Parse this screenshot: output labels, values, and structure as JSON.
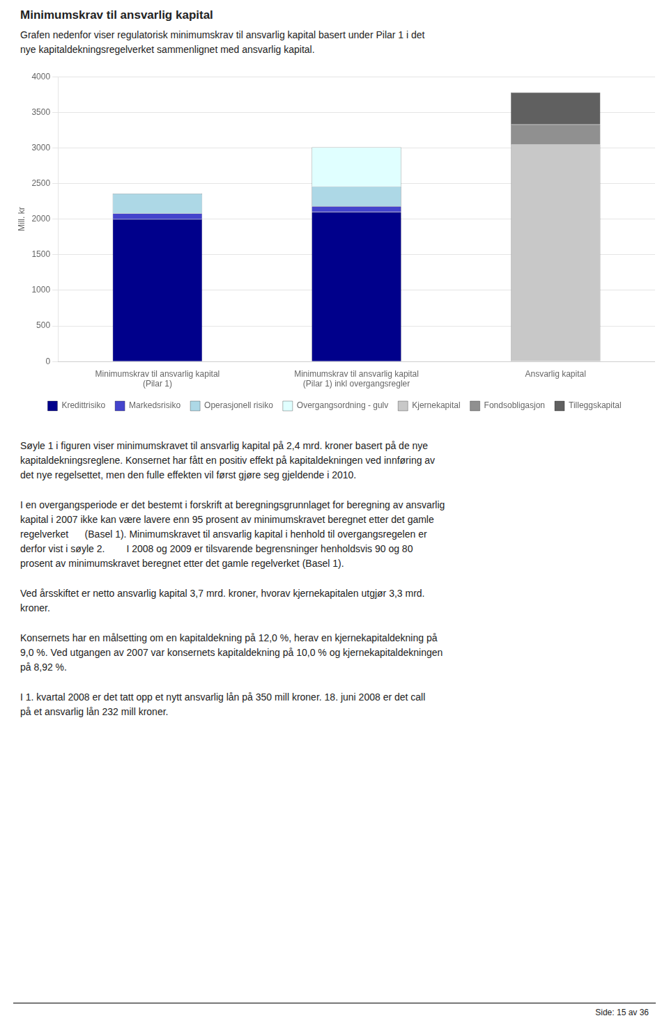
{
  "chart_data": {
    "type": "bar",
    "title": "Minimumskrav til ansvarlig kapital",
    "subtitle": "Grafen nedenfor viser regulatorisk minimumskrav til ansvarlig kapital basert under Pilar 1 i det\nnye kapitaldekningsregelverket sammenlignet med ansvarlig kapital.",
    "ylabel": "Mill. kr",
    "categories": [
      "Minimumskrav til ansvarlig kapital\n(Pilar 1)",
      "Minimumskrav til ansvarlig kapital\n(Pilar 1) inkl overgangsregler",
      "Ansvarlig kapital"
    ],
    "series": [
      {
        "name": "Kredittrisiko",
        "color": "#00008B",
        "values": [
          2000,
          2100,
          0
        ]
      },
      {
        "name": "Markedsrisiko",
        "color": "#4444CC",
        "values": [
          80,
          80,
          0
        ]
      },
      {
        "name": "Operasjonell risiko",
        "color": "#ADD8E6",
        "values": [
          280,
          280,
          0
        ]
      },
      {
        "name": "Overgangsordning - gulv",
        "color": "#E0FFFF",
        "values": [
          0,
          550,
          0
        ]
      },
      {
        "name": "Kjernekapital",
        "color": "#C8C8C8",
        "values": [
          0,
          0,
          3050
        ]
      },
      {
        "name": "Fondsobligasjon",
        "color": "#909090",
        "values": [
          0,
          0,
          280
        ]
      },
      {
        "name": "Tilleggskapital",
        "color": "#606060",
        "values": [
          0,
          0,
          450
        ]
      }
    ],
    "stacked": true,
    "ylim": [
      0,
      4000
    ],
    "yticks": [
      0,
      500,
      1000,
      1500,
      2000,
      2500,
      3000,
      3500,
      4000
    ],
    "grid": true,
    "legend": "bottom",
    "annotations": [
      "Søyle 1 i figuren viser minimumskravet til ansvarlig kapital på 2,4 mrd. kroner basert på de nye\nkapitaldekningsreglene. Konsernet har fått en positiv effekt på kapitaldekningen ved innføring av\ndet nye regelsettet, men den fulle effekten vil først gjøre seg gjeldende i 2010.",
      "I en overgangsperiode er det bestemt i forskrift at beregningsgrunnlaget for beregning av ansvarlig\nkapital i 2007 ikke kan være lavere enn 95 prosent av minimumskravet beregnet etter det gamle\nregelverket      (Basel 1). Minimumskravet til ansvarlig kapital i henhold til overgangsregelen er\nderfor vist i søyle 2.        I 2008 og 2009 er tilsvarende begrensninger henholdsvis 90 og 80\nprosent av minimumskravet beregnet etter det gamle regelverket (Basel 1).",
      "Ved årsskiftet er netto ansvarlig kapital 3,7 mrd. kroner, hvorav kjernekapitalen utgjør 3,3 mrd.\nkroner.",
      "Konsernets har en målsetting om en kapitaldekning på 12,0 %, herav en kjernekapitaldekning på\n9,0 %. Ved utgangen av 2007 var konsernets kapitaldekning på 10,0 % og kjernekapitaldekningen\npå 8,92 %.",
      "I 1. kvartal 2008 er det tatt opp et nytt ansvarlig lån på 350 mill kroner. 18. juni 2008 er det call\npå et ansvarlig lån 232 mill kroner."
    ],
    "footer": "Side: 15 av 36"
  }
}
